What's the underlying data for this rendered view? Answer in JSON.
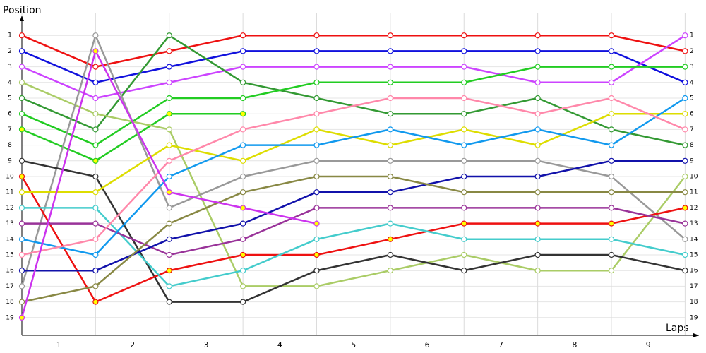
{
  "chart_data": {
    "type": "line",
    "y_label": "Position",
    "x_label": "Laps",
    "x": [
      0,
      1,
      2,
      3,
      4,
      5,
      6,
      7,
      8,
      9
    ],
    "xlim": [
      0,
      9.14
    ],
    "xticks": [
      {
        "value": 0.5,
        "label": "1"
      },
      {
        "value": 1.5,
        "label": "2"
      },
      {
        "value": 2.5,
        "label": "3"
      },
      {
        "value": 3.5,
        "label": "4"
      },
      {
        "value": 4.5,
        "label": "5"
      },
      {
        "value": 5.5,
        "label": "6"
      },
      {
        "value": 6.5,
        "label": "7"
      },
      {
        "value": 7.5,
        "label": "8"
      },
      {
        "value": 8.5,
        "label": "9"
      }
    ],
    "ylim": [
      20,
      0
    ],
    "yticks": [
      1,
      2,
      3,
      4,
      5,
      6,
      7,
      8,
      9,
      10,
      11,
      12,
      13,
      14,
      15,
      16,
      17,
      18,
      19
    ],
    "grid": true,
    "series": [
      {
        "color": "#ee1111",
        "marker_color": "#ffffff",
        "values": [
          1,
          3,
          2,
          1,
          1,
          1,
          1,
          1,
          1,
          2
        ]
      },
      {
        "color": "#1111dd",
        "marker_color": "#ffffff",
        "values": [
          2,
          4,
          3,
          2,
          2,
          2,
          2,
          2,
          2,
          4
        ]
      },
      {
        "color": "#cc44ff",
        "marker_color": "#ffffff",
        "values": [
          3,
          5,
          4,
          3,
          3,
          3,
          3,
          4,
          4,
          1
        ]
      },
      {
        "color": "#339933",
        "marker_color": "#ffffff",
        "values": [
          5,
          7,
          1,
          4,
          5,
          6,
          6,
          5,
          7,
          8
        ]
      },
      {
        "color": "#22cc22",
        "marker_color": "#ffffff",
        "values": [
          6,
          8,
          5,
          5,
          4,
          4,
          4,
          3,
          3,
          3
        ]
      },
      {
        "color": "#22cc22",
        "marker_color": "#ffff00",
        "values": [
          7,
          9,
          6,
          6,
          null,
          null,
          null,
          null,
          null,
          null
        ]
      },
      {
        "color": "#aacc66",
        "marker_color": "#ffffff",
        "values": [
          4,
          6,
          7,
          17,
          17,
          16,
          15,
          16,
          16,
          10
        ]
      },
      {
        "color": "#999999",
        "marker_color": "#ffffff",
        "values": [
          17,
          1,
          12,
          10,
          9,
          9,
          9,
          9,
          10,
          14
        ]
      },
      {
        "color": "#333333",
        "marker_color": "#ffffff",
        "values": [
          9,
          10,
          18,
          18,
          16,
          15,
          16,
          15,
          15,
          16
        ]
      },
      {
        "color": "#ee1111",
        "marker_color": "#ffff00",
        "values": [
          10,
          18,
          16,
          15,
          15,
          14,
          13,
          13,
          13,
          12
        ]
      },
      {
        "color": "#dddd00",
        "marker_color": "#ffffff",
        "values": [
          11,
          11,
          8,
          9,
          7,
          8,
          7,
          8,
          6,
          6
        ]
      },
      {
        "color": "#44cccc",
        "marker_color": "#ffffff",
        "values": [
          12,
          12,
          17,
          16,
          14,
          13,
          14,
          14,
          14,
          15
        ]
      },
      {
        "color": "#993399",
        "marker_color": "#ffffff",
        "values": [
          13,
          13,
          15,
          14,
          12,
          12,
          12,
          12,
          12,
          13
        ]
      },
      {
        "color": "#1199ee",
        "marker_color": "#ffffff",
        "values": [
          14,
          15,
          10,
          8,
          8,
          7,
          8,
          7,
          8,
          5
        ]
      },
      {
        "color": "#ff88aa",
        "marker_color": "#ffffff",
        "values": [
          15,
          14,
          9,
          7,
          6,
          5,
          5,
          6,
          5,
          7
        ]
      },
      {
        "color": "#1111aa",
        "marker_color": "#ffffff",
        "values": [
          16,
          16,
          14,
          13,
          11,
          11,
          10,
          10,
          9,
          9
        ]
      },
      {
        "color": "#888844",
        "marker_color": "#ffffff",
        "values": [
          18,
          17,
          13,
          11,
          10,
          10,
          11,
          11,
          11,
          11
        ]
      },
      {
        "color": "#cc33ee",
        "marker_color": "#ffff00",
        "values": [
          19,
          2,
          11,
          12,
          13,
          null,
          null,
          null,
          null,
          null
        ]
      }
    ]
  }
}
